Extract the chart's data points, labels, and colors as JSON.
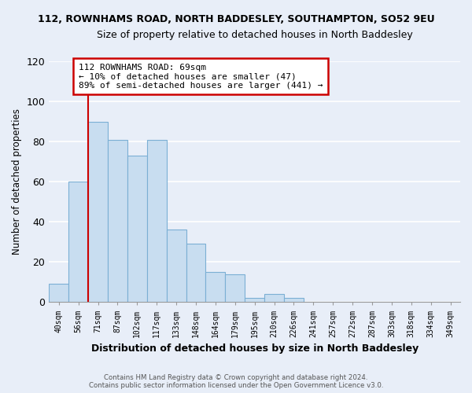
{
  "title": "112, ROWNHAMS ROAD, NORTH BADDESLEY, SOUTHAMPTON, SO52 9EU",
  "subtitle": "Size of property relative to detached houses in North Baddesley",
  "xlabel": "Distribution of detached houses by size in North Baddesley",
  "ylabel": "Number of detached properties",
  "bar_labels": [
    "40sqm",
    "56sqm",
    "71sqm",
    "87sqm",
    "102sqm",
    "117sqm",
    "133sqm",
    "148sqm",
    "164sqm",
    "179sqm",
    "195sqm",
    "210sqm",
    "226sqm",
    "241sqm",
    "257sqm",
    "272sqm",
    "287sqm",
    "303sqm",
    "318sqm",
    "334sqm",
    "349sqm"
  ],
  "bar_values": [
    9,
    60,
    90,
    81,
    73,
    81,
    36,
    29,
    15,
    14,
    2,
    4,
    2,
    0,
    0,
    0,
    0,
    0,
    0,
    0,
    0
  ],
  "bar_color": "#c8ddf0",
  "bar_edge_color": "#7bafd4",
  "vline_x": 2,
  "vline_color": "#cc0000",
  "ylim": [
    0,
    120
  ],
  "yticks": [
    0,
    20,
    40,
    60,
    80,
    100,
    120
  ],
  "annotation_text": "112 ROWNHAMS ROAD: 69sqm\n← 10% of detached houses are smaller (47)\n89% of semi-detached houses are larger (441) →",
  "annotation_box_color": "#ffffff",
  "annotation_box_edge": "#cc0000",
  "plot_bg_color": "#e8eef8",
  "fig_bg_color": "#e8eef8",
  "grid_color": "#ffffff",
  "footer_line1": "Contains HM Land Registry data © Crown copyright and database right 2024.",
  "footer_line2": "Contains public sector information licensed under the Open Government Licence v3.0."
}
